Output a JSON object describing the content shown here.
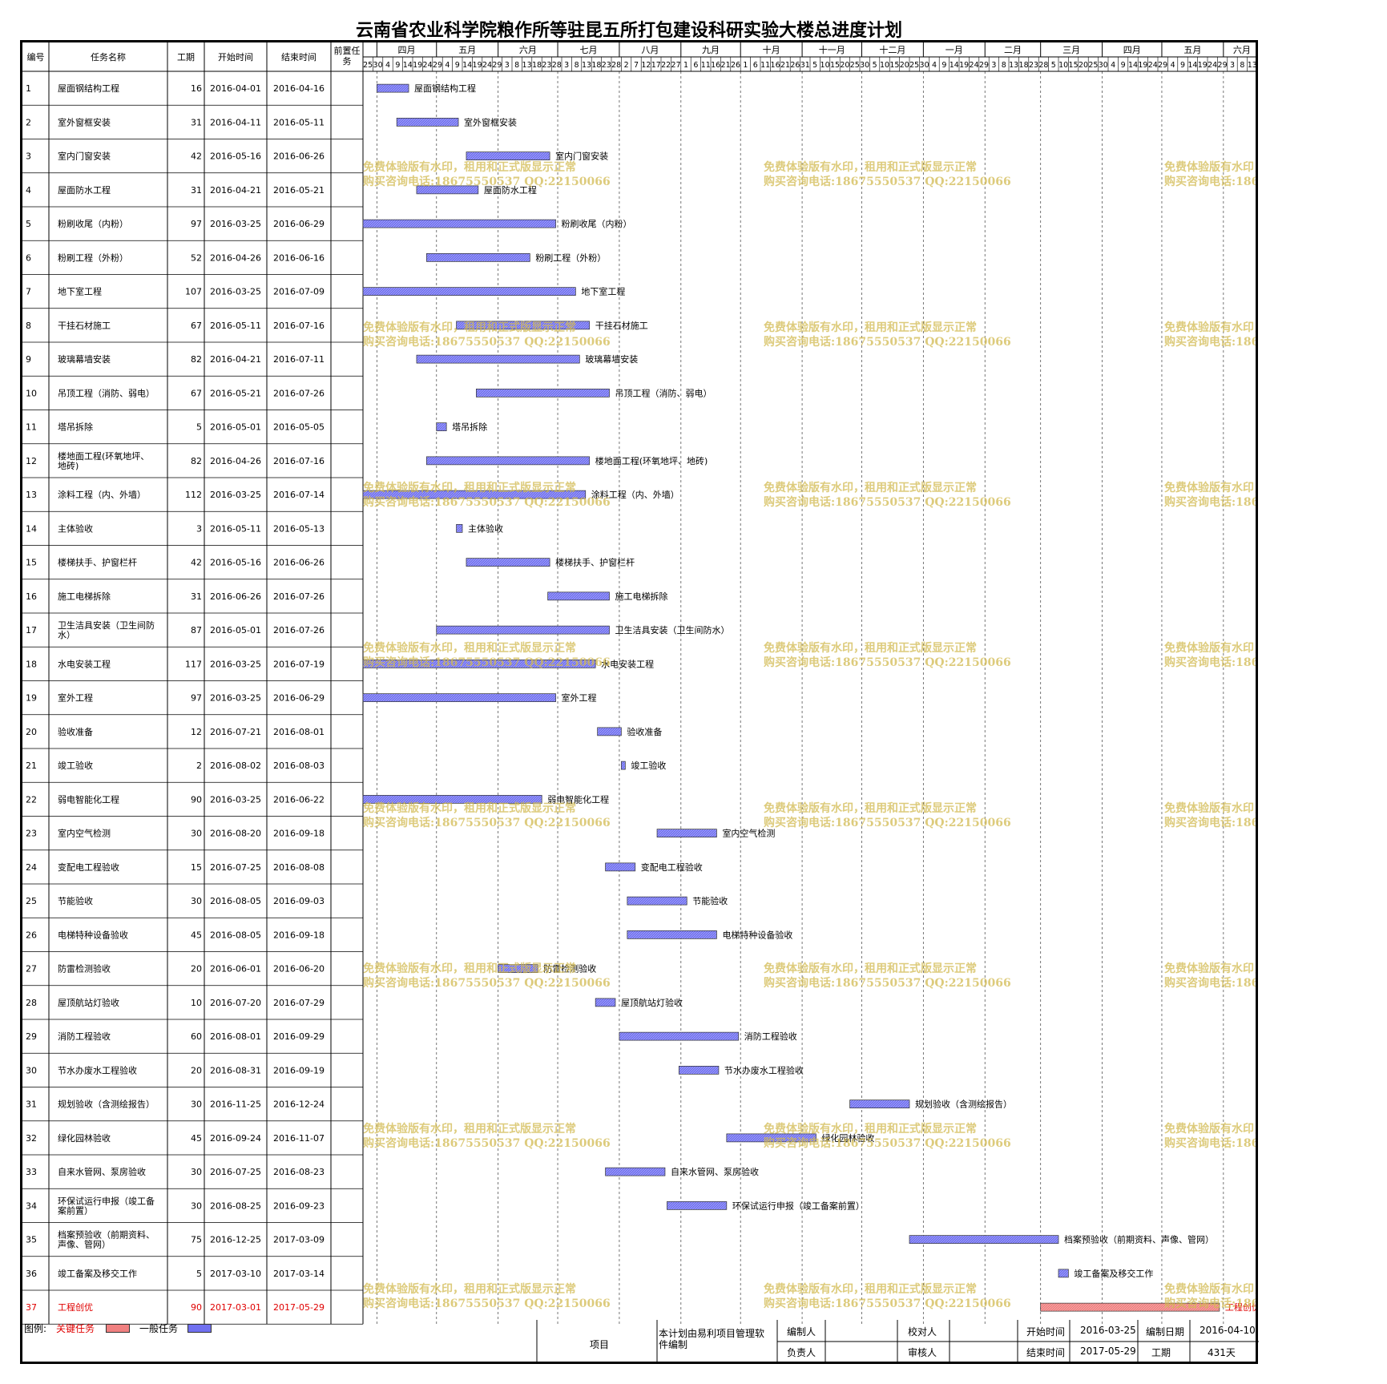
{
  "title": "云南省农业科学院粮作所等驻昆五所打包建设科研实验大楼总进度计划",
  "columns": [
    "编号",
    "任务名称",
    "工期",
    "开始时间",
    "结束时间",
    "前置任务"
  ],
  "months": [
    "四月",
    "五月",
    "六月",
    "七月",
    "八月",
    "九月",
    "十月",
    "十一月",
    "十二月",
    "一月",
    "二月",
    "三月",
    "四月",
    "五月",
    "六月"
  ],
  "day_ticks": [
    "25",
    "30",
    "4",
    "9",
    "14",
    "19",
    "24",
    "29",
    "4",
    "9",
    "14",
    "19",
    "24",
    "29",
    "3",
    "8",
    "13",
    "18",
    "23",
    "28",
    "3",
    "8",
    "13",
    "18",
    "23",
    "28",
    "2",
    "7",
    "12",
    "17",
    "22",
    "27",
    "1",
    "6",
    "11",
    "16",
    "21",
    "26",
    "1",
    "6",
    "11",
    "16",
    "21",
    "26",
    "31",
    "5",
    "10",
    "15",
    "20",
    "25",
    "30",
    "5",
    "10",
    "15",
    "20",
    "25",
    "30",
    "4",
    "9",
    "14",
    "19",
    "24",
    "29",
    "3",
    "8",
    "13",
    "18",
    "23",
    "28",
    "5",
    "10",
    "15",
    "20",
    "25",
    "30",
    "4",
    "9",
    "14",
    "19",
    "24",
    "29",
    "4",
    "9",
    "14",
    "19",
    "24",
    "29",
    "3",
    "8",
    "13"
  ],
  "watermark": {
    "line1": "免费体验版有水印，租用和正式版显示正常",
    "line2": "购买咨询电话:18675550537 QQ:22150066"
  },
  "chart_data": {
    "type": "gantt",
    "timeline_start": "2016-03-25",
    "timeline_end": "2017-06-17",
    "tasks": [
      {
        "id": "1",
        "name": "屋面钢结构工程",
        "duration": "16",
        "start": "2016-04-01",
        "end": "2016-04-16",
        "critical": false
      },
      {
        "id": "2",
        "name": "室外窗框安装",
        "duration": "31",
        "start": "2016-04-11",
        "end": "2016-05-11",
        "critical": false
      },
      {
        "id": "3",
        "name": "室内门窗安装",
        "duration": "42",
        "start": "2016-05-16",
        "end": "2016-06-26",
        "critical": false
      },
      {
        "id": "4",
        "name": "屋面防水工程",
        "duration": "31",
        "start": "2016-04-21",
        "end": "2016-05-21",
        "critical": false
      },
      {
        "id": "5",
        "name": "粉刷收尾（内粉）",
        "duration": "97",
        "start": "2016-03-25",
        "end": "2016-06-29",
        "critical": false
      },
      {
        "id": "6",
        "name": "粉刷工程（外粉）",
        "duration": "52",
        "start": "2016-04-26",
        "end": "2016-06-16",
        "critical": false
      },
      {
        "id": "7",
        "name": "地下室工程",
        "duration": "107",
        "start": "2016-03-25",
        "end": "2016-07-09",
        "critical": false
      },
      {
        "id": "8",
        "name": "干挂石材施工",
        "duration": "67",
        "start": "2016-05-11",
        "end": "2016-07-16",
        "critical": false
      },
      {
        "id": "9",
        "name": "玻璃幕墙安装",
        "duration": "82",
        "start": "2016-04-21",
        "end": "2016-07-11",
        "critical": false
      },
      {
        "id": "10",
        "name": "吊顶工程（消防、弱电）",
        "duration": "67",
        "start": "2016-05-21",
        "end": "2016-07-26",
        "critical": false
      },
      {
        "id": "11",
        "name": "塔吊拆除",
        "duration": "5",
        "start": "2016-05-01",
        "end": "2016-05-05",
        "critical": false
      },
      {
        "id": "12",
        "name": "楼地面工程(环氧地坪、地砖)",
        "duration": "82",
        "start": "2016-04-26",
        "end": "2016-07-16",
        "critical": false
      },
      {
        "id": "13",
        "name": "涂料工程（内、外墙）",
        "duration": "112",
        "start": "2016-03-25",
        "end": "2016-07-14",
        "critical": false
      },
      {
        "id": "14",
        "name": "主体验收",
        "duration": "3",
        "start": "2016-05-11",
        "end": "2016-05-13",
        "critical": false
      },
      {
        "id": "15",
        "name": "楼梯扶手、护窗栏杆",
        "duration": "42",
        "start": "2016-05-16",
        "end": "2016-06-26",
        "critical": false
      },
      {
        "id": "16",
        "name": "施工电梯拆除",
        "duration": "31",
        "start": "2016-06-26",
        "end": "2016-07-26",
        "critical": false
      },
      {
        "id": "17",
        "name": "卫生洁具安装（卫生间防水）",
        "duration": "87",
        "start": "2016-05-01",
        "end": "2016-07-26",
        "critical": false
      },
      {
        "id": "18",
        "name": "水电安装工程",
        "duration": "117",
        "start": "2016-03-25",
        "end": "2016-07-19",
        "critical": false
      },
      {
        "id": "19",
        "name": "室外工程",
        "duration": "97",
        "start": "2016-03-25",
        "end": "2016-06-29",
        "critical": false
      },
      {
        "id": "20",
        "name": "验收准备",
        "duration": "12",
        "start": "2016-07-21",
        "end": "2016-08-01",
        "critical": false
      },
      {
        "id": "21",
        "name": "竣工验收",
        "duration": "2",
        "start": "2016-08-02",
        "end": "2016-08-03",
        "critical": false
      },
      {
        "id": "22",
        "name": "弱电智能化工程",
        "duration": "90",
        "start": "2016-03-25",
        "end": "2016-06-22",
        "critical": false
      },
      {
        "id": "23",
        "name": "室内空气检测",
        "duration": "30",
        "start": "2016-08-20",
        "end": "2016-09-18",
        "critical": false
      },
      {
        "id": "24",
        "name": "变配电工程验收",
        "duration": "15",
        "start": "2016-07-25",
        "end": "2016-08-08",
        "critical": false
      },
      {
        "id": "25",
        "name": "节能验收",
        "duration": "30",
        "start": "2016-08-05",
        "end": "2016-09-03",
        "critical": false
      },
      {
        "id": "26",
        "name": "电梯特种设备验收",
        "duration": "45",
        "start": "2016-08-05",
        "end": "2016-09-18",
        "critical": false
      },
      {
        "id": "27",
        "name": "防雷检测验收",
        "duration": "20",
        "start": "2016-06-01",
        "end": "2016-06-20",
        "critical": false
      },
      {
        "id": "28",
        "name": "屋顶航站灯验收",
        "duration": "10",
        "start": "2016-07-20",
        "end": "2016-07-29",
        "critical": false
      },
      {
        "id": "29",
        "name": "消防工程验收",
        "duration": "60",
        "start": "2016-08-01",
        "end": "2016-09-29",
        "critical": false
      },
      {
        "id": "30",
        "name": "节水办废水工程验收",
        "duration": "20",
        "start": "2016-08-31",
        "end": "2016-09-19",
        "critical": false
      },
      {
        "id": "31",
        "name": "规划验收（含测绘报告）",
        "duration": "30",
        "start": "2016-11-25",
        "end": "2016-12-24",
        "critical": false
      },
      {
        "id": "32",
        "name": "绿化园林验收",
        "duration": "45",
        "start": "2016-09-24",
        "end": "2016-11-07",
        "critical": false
      },
      {
        "id": "33",
        "name": "自来水管网、泵房验收",
        "duration": "30",
        "start": "2016-07-25",
        "end": "2016-08-23",
        "critical": false
      },
      {
        "id": "34",
        "name": "环保试运行申报（竣工备案前置）",
        "duration": "30",
        "start": "2016-08-25",
        "end": "2016-09-23",
        "critical": false
      },
      {
        "id": "35",
        "name": "档案预验收（前期资料、声像、管网）",
        "duration": "75",
        "start": "2016-12-25",
        "end": "2017-03-09",
        "critical": false
      },
      {
        "id": "36",
        "name": "竣工备案及移交工作",
        "duration": "5",
        "start": "2017-03-10",
        "end": "2017-03-14",
        "critical": false
      },
      {
        "id": "37",
        "name": "工程创优",
        "duration": "90",
        "start": "2017-03-01",
        "end": "2017-05-29",
        "critical": true
      }
    ]
  },
  "legend": {
    "label": "图例:",
    "critical_label": "关键任务",
    "normal_label": "一般任务",
    "critical_color": "#f08080",
    "normal_color": "#7070f0"
  },
  "footer": {
    "project_label": "项目",
    "software_note": "本计划由易利项目管理软件编制",
    "compiler_label": "编制人",
    "checker_label": "校对人",
    "owner_label": "负责人",
    "reviewer_label": "审核人",
    "start_label": "开始时间",
    "start_value": "2016-03-25",
    "compile_date_label": "编制日期",
    "compile_date_value": "2016-04-10",
    "end_label": "结束时间",
    "end_value": "2017-05-29",
    "duration_label": "工期",
    "duration_value": "431天"
  }
}
